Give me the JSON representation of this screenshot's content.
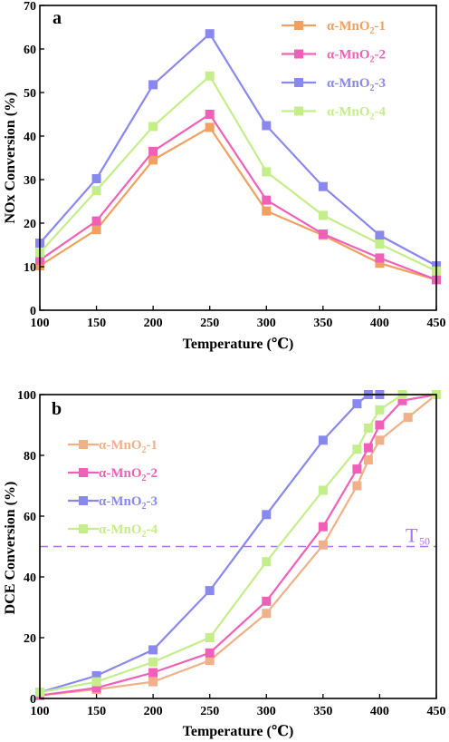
{
  "chart_data": [
    {
      "panel_label": "a",
      "type": "line",
      "xlabel": "Temperature (℃)",
      "ylabel": "NOx Conversion  (%)",
      "xlim": [
        100,
        450
      ],
      "ylim": [
        0,
        70
      ],
      "xticks": [
        100,
        150,
        200,
        250,
        300,
        350,
        400,
        450
      ],
      "yticks": [
        0,
        10,
        20,
        30,
        40,
        50,
        60,
        70
      ],
      "grid": false,
      "legend_position": "top-right",
      "series": [
        {
          "name": "α-MnO₂-1",
          "color": "#f0a060",
          "x": [
            100,
            150,
            200,
            250,
            300,
            350,
            400,
            450
          ],
          "y": [
            10.2,
            18.5,
            34.5,
            42.0,
            22.8,
            17.2,
            10.8,
            7.0
          ]
        },
        {
          "name": "α-MnO₂-2",
          "color": "#f060b8",
          "x": [
            100,
            150,
            200,
            250,
            300,
            350,
            400,
            450
          ],
          "y": [
            11.5,
            20.5,
            36.5,
            45.0,
            25.3,
            17.5,
            12.0,
            7.0
          ]
        },
        {
          "name": "α-MnO₂-3",
          "color": "#8888ee",
          "x": [
            100,
            150,
            200,
            250,
            300,
            350,
            400,
            450
          ],
          "y": [
            15.4,
            30.2,
            51.8,
            63.5,
            42.4,
            28.4,
            17.2,
            10.2
          ]
        },
        {
          "name": "α-MnO₂-4",
          "color": "#c4ee8a",
          "x": [
            100,
            150,
            200,
            250,
            300,
            350,
            400,
            450
          ],
          "y": [
            13.2,
            27.5,
            42.2,
            53.8,
            31.8,
            21.8,
            15.2,
            9.0
          ]
        }
      ]
    },
    {
      "panel_label": "b",
      "type": "line",
      "xlabel": "Temperature (℃)",
      "ylabel": "DCE Conversion  (%)",
      "xlim": [
        100,
        450
      ],
      "ylim": [
        0,
        100
      ],
      "xticks": [
        100,
        150,
        200,
        250,
        300,
        350,
        400,
        450
      ],
      "yticks": [
        0,
        20,
        40,
        60,
        80,
        100
      ],
      "grid": false,
      "legend_position": "top-left",
      "reference_line": {
        "y": 50,
        "label": "T",
        "label_sub": "50",
        "color": "#b070f0"
      },
      "series": [
        {
          "name": "α-MnO₂-1",
          "color": "#f0b088",
          "x": [
            100,
            150,
            200,
            250,
            300,
            350,
            380,
            390,
            400,
            425,
            450
          ],
          "y": [
            1,
            3,
            5.5,
            12.5,
            28,
            50.5,
            70,
            78.5,
            85,
            92.5,
            100
          ]
        },
        {
          "name": "α-MnO₂-2",
          "color": "#f060b8",
          "x": [
            100,
            150,
            200,
            250,
            300,
            350,
            380,
            390,
            400,
            420,
            450
          ],
          "y": [
            1,
            3.5,
            8.5,
            15,
            32,
            56.5,
            75.5,
            82.5,
            90,
            98,
            100
          ]
        },
        {
          "name": "α-MnO₂-3",
          "color": "#8888ee",
          "x": [
            100,
            150,
            200,
            250,
            300,
            350,
            380,
            390,
            400
          ],
          "y": [
            2,
            7.5,
            16,
            35.5,
            60.5,
            85,
            97,
            100,
            100
          ]
        },
        {
          "name": "α-MnO₂-4",
          "color": "#c4ee8a",
          "x": [
            100,
            150,
            200,
            250,
            300,
            350,
            380,
            390,
            400,
            420,
            450
          ],
          "y": [
            2,
            5.5,
            12,
            20,
            45,
            68.5,
            82,
            89,
            95,
            100,
            100
          ]
        }
      ]
    }
  ]
}
